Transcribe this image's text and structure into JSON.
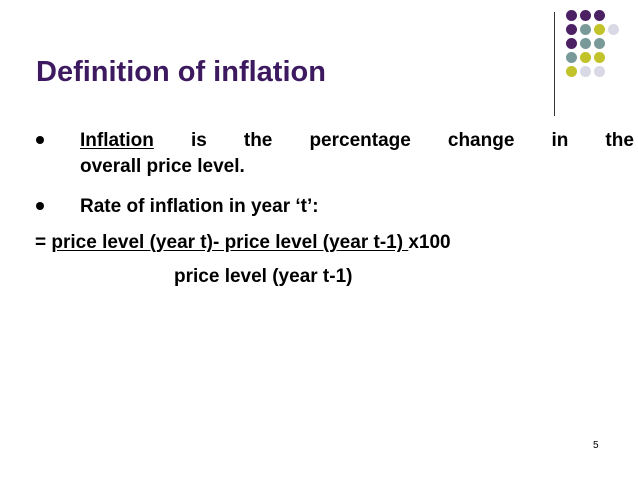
{
  "slide": {
    "title": "Definition of inflation",
    "bullet1": {
      "term": "Inflation",
      "w1": "is",
      "w2": "the",
      "w3": "percentage",
      "w4": "change",
      "w5": "in",
      "w6": "the",
      "line2": "overall price level."
    },
    "bullet2": "Rate of inflation in year ‘t’:",
    "formula": {
      "prefix": "= ",
      "numerator": "price level (year t)- price level (year t-1) ",
      "suffix": "x100",
      "denominator": "price level (year t-1)"
    },
    "page_number": "5"
  },
  "decoration": {
    "dot_colors": {
      "purple": "#4b2164",
      "gray": "#7a9a9a",
      "olive": "#c2c22a",
      "light": "#d9d9e6"
    },
    "dot_rows": [
      [
        "purple",
        "purple",
        "purple",
        "none"
      ],
      [
        "purple",
        "gray",
        "olive",
        "light"
      ],
      [
        "purple",
        "gray",
        "gray",
        "none"
      ],
      [
        "gray",
        "olive",
        "olive",
        "none"
      ],
      [
        "olive",
        "light",
        "light",
        "none"
      ]
    ]
  }
}
